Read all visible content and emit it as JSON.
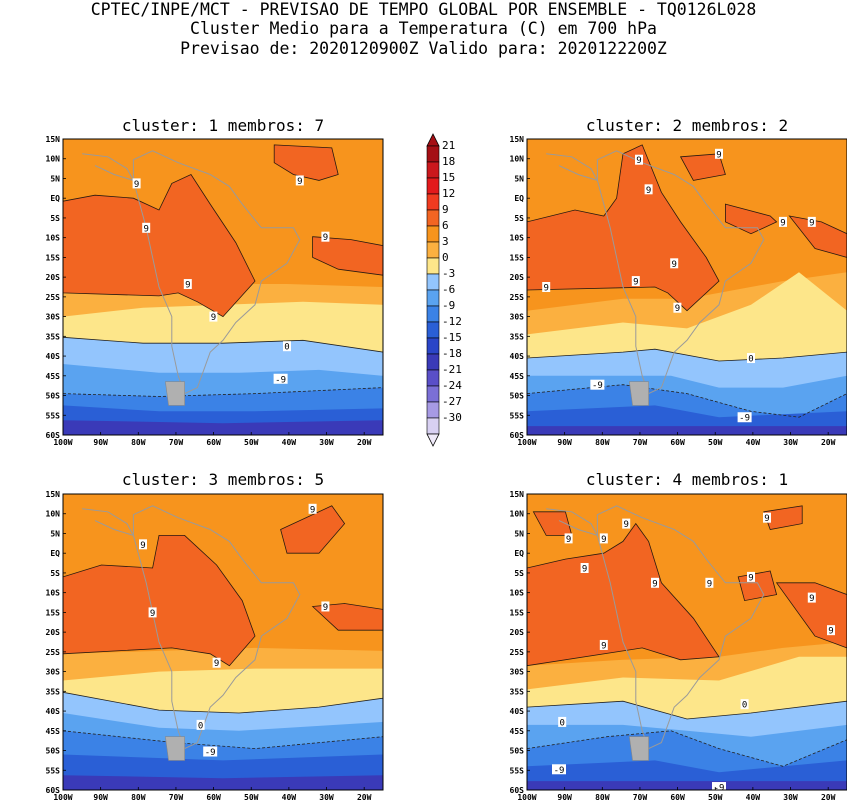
{
  "header": {
    "line1": "CPTEC/INPE/MCT - PREVISAO DE TEMPO GLOBAL POR ENSEMBLE - TQ0126L028",
    "line2": "Cluster Medio para a Temperatura (C) em 700 hPa",
    "line3": "Previsao de: 2020120900Z   Valido para: 2020122200Z"
  },
  "panels": [
    {
      "title": "cluster: 1  membros: 7"
    },
    {
      "title": "cluster: 2  membros: 2"
    },
    {
      "title": "cluster: 3  membros: 5"
    },
    {
      "title": "cluster: 4  membros: 1"
    }
  ],
  "axes": {
    "lat_labels": [
      "15N",
      "10N",
      "5N",
      "EQ",
      "5S",
      "10S",
      "15S",
      "20S",
      "25S",
      "30S",
      "35S",
      "40S",
      "45S",
      "50S",
      "55S",
      "60S"
    ],
    "lon_labels": [
      "100W",
      "90W",
      "80W",
      "70W",
      "60W",
      "50W",
      "40W",
      "30W",
      "20W"
    ]
  },
  "colorbar": {
    "labels": [
      "21",
      "18",
      "15",
      "12",
      "9",
      "6",
      "3",
      "0",
      "-3",
      "-6",
      "-9",
      "-12",
      "-15",
      "-18",
      "-21",
      "-24",
      "-27",
      "-30"
    ],
    "colors": [
      "#a50f15",
      "#cb181d",
      "#e31a1c",
      "#f03b20",
      "#f26522",
      "#f7941d",
      "#fbb040",
      "#fde68a",
      "#93c5fd",
      "#5aa3f0",
      "#3b82e6",
      "#2a5fd6",
      "#2a45c8",
      "#3a3ab8",
      "#5a4fc8",
      "#7b6fd6",
      "#a79ae4",
      "#d8d0f2"
    ]
  },
  "contour_labels": [
    [
      "9",
      "9",
      "9",
      "9",
      "9",
      "9",
      "0",
      "-9"
    ],
    [
      "9",
      "9",
      "9",
      "9",
      "9",
      "9",
      "9",
      "9",
      "9",
      "0",
      "-9",
      "-9"
    ],
    [
      "9",
      "9",
      "9",
      "9",
      "9",
      "0",
      "-9"
    ],
    [
      "9",
      "9",
      "9",
      "9",
      "9",
      "9",
      "9",
      "9",
      "9",
      "9",
      "9",
      "0",
      "0",
      "-9",
      "-9"
    ]
  ]
}
